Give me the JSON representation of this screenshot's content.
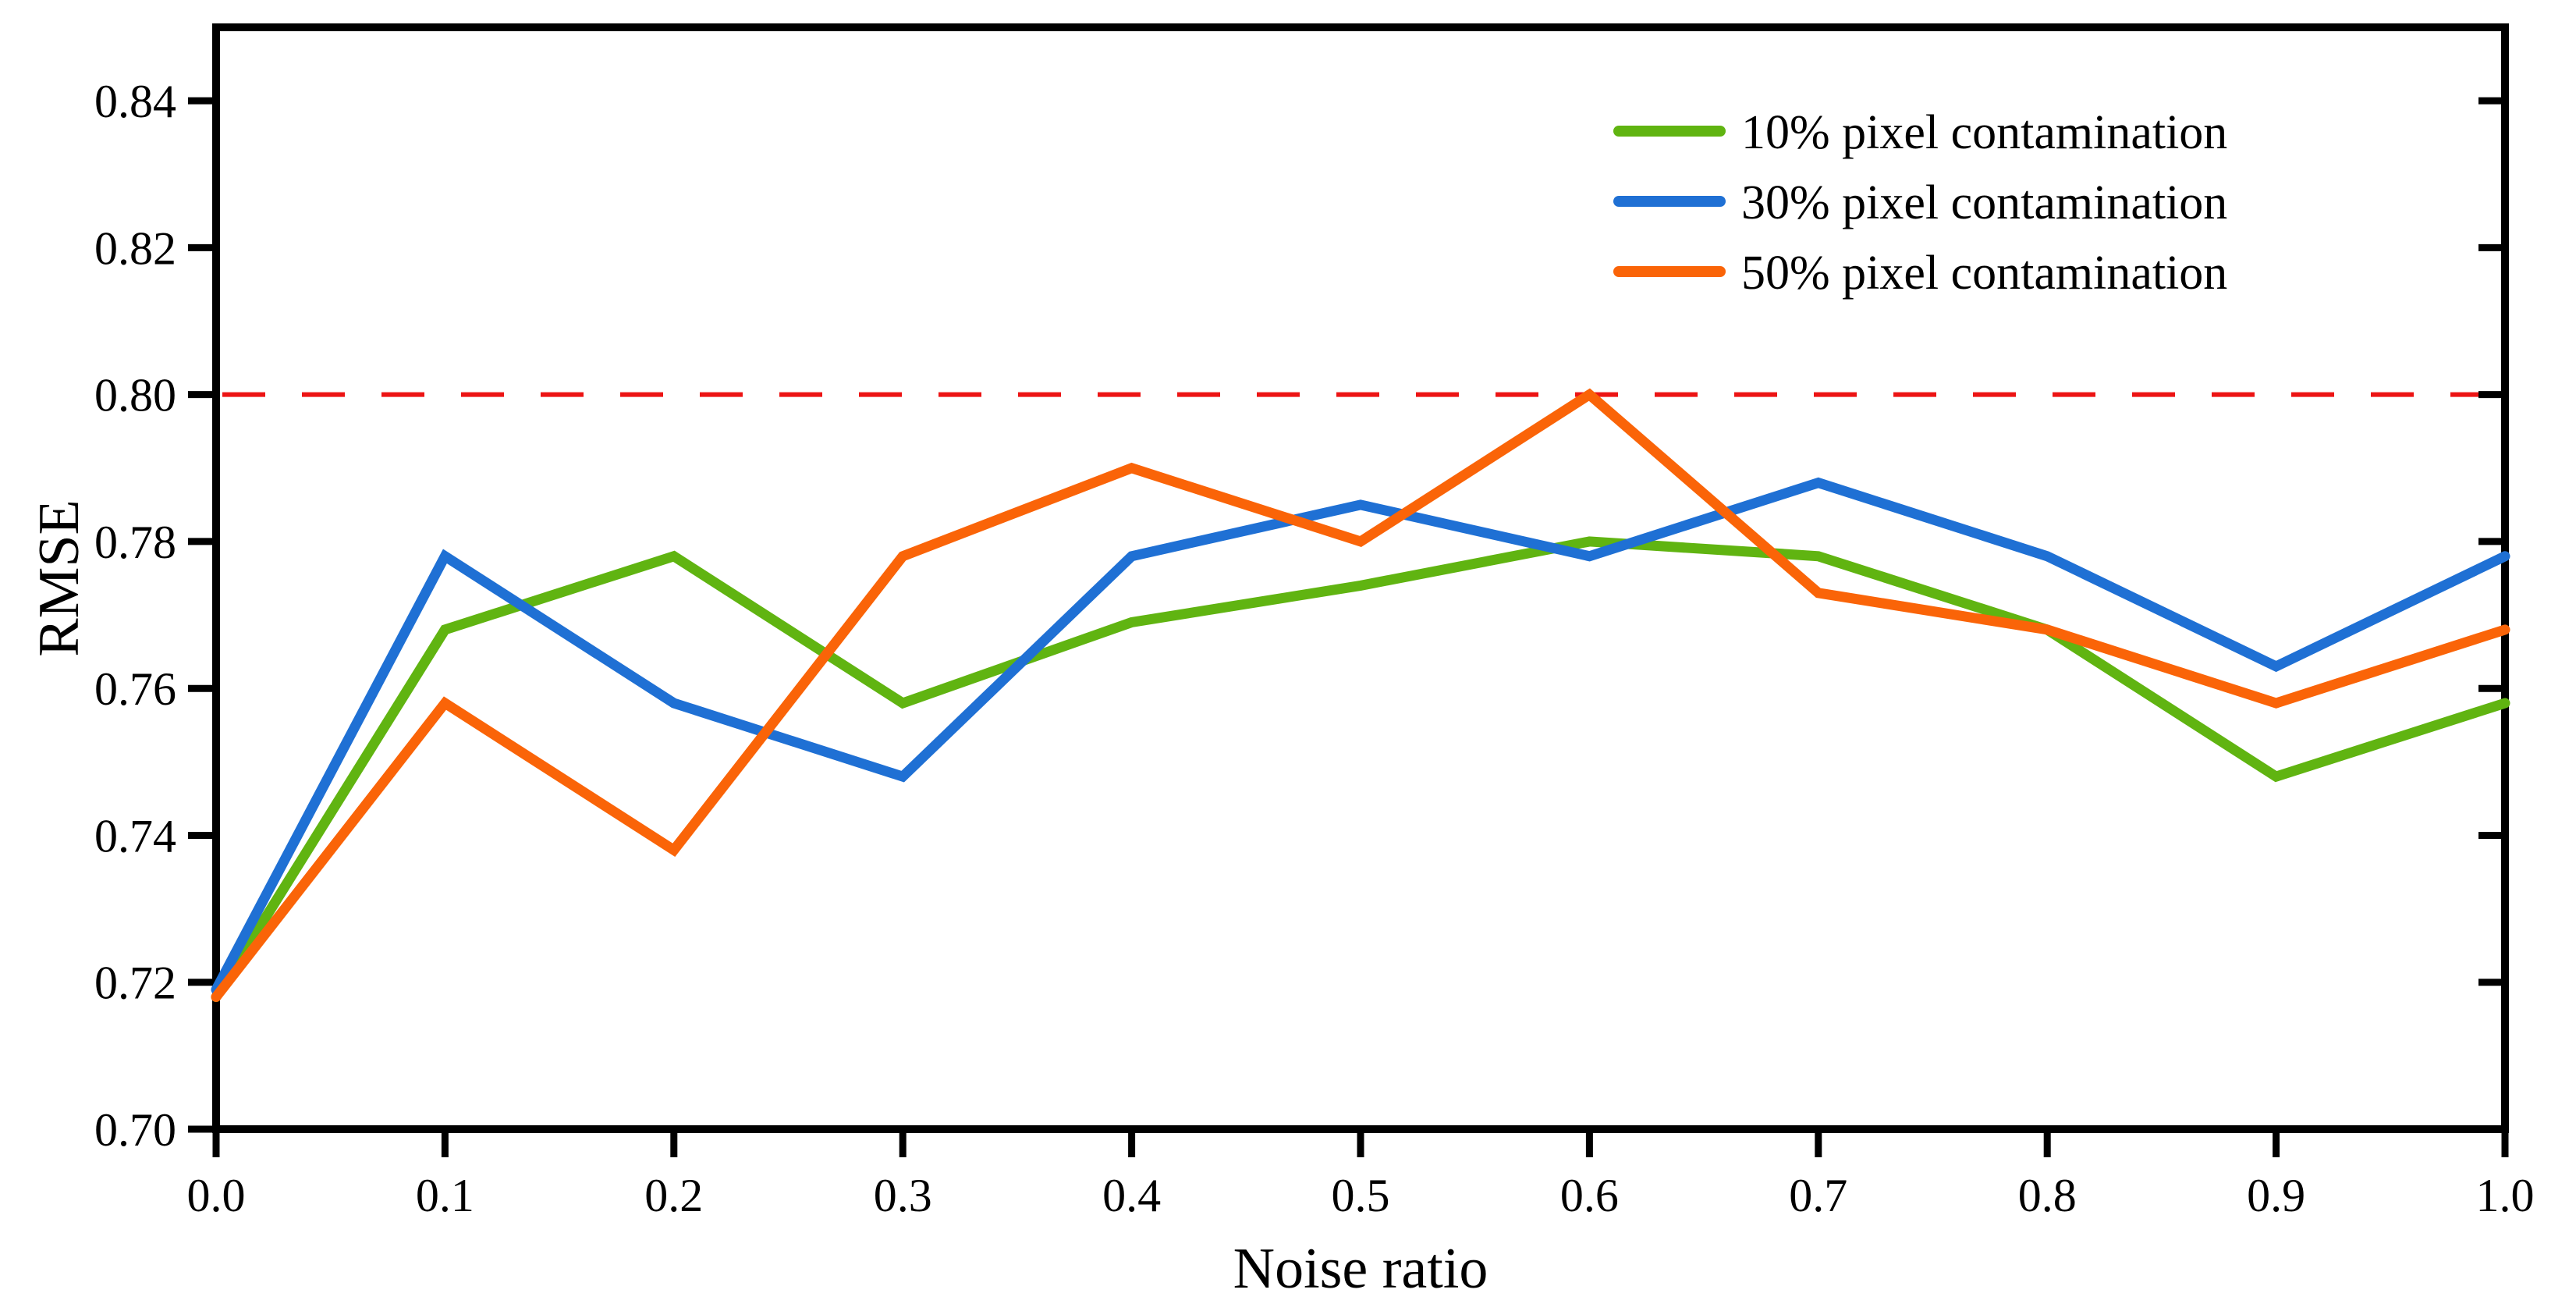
{
  "figure": {
    "background": "#ffffff",
    "text_color": "#000000"
  },
  "chart_data": {
    "type": "line",
    "title": "",
    "xlabel": "Noise ratio",
    "ylabel": "RMSE",
    "x": [
      0.0,
      0.1,
      0.2,
      0.3,
      0.4,
      0.5,
      0.6,
      0.7,
      0.8,
      0.9,
      1.0
    ],
    "xlim": [
      0.0,
      1.0
    ],
    "ylim": [
      0.7,
      0.85
    ],
    "grid": false,
    "legend_position": "top-right",
    "x_ticks": [
      {
        "value": 0.0,
        "label": "0.0"
      },
      {
        "value": 0.1,
        "label": "0.1"
      },
      {
        "value": 0.2,
        "label": "0.2"
      },
      {
        "value": 0.3,
        "label": "0.3"
      },
      {
        "value": 0.4,
        "label": "0.4"
      },
      {
        "value": 0.5,
        "label": "0.5"
      },
      {
        "value": 0.6,
        "label": "0.6"
      },
      {
        "value": 0.7,
        "label": "0.7"
      },
      {
        "value": 0.8,
        "label": "0.8"
      },
      {
        "value": 0.9,
        "label": "0.9"
      },
      {
        "value": 1.0,
        "label": "1.0"
      }
    ],
    "y_ticks": [
      {
        "value": 0.7,
        "label": "0.70"
      },
      {
        "value": 0.72,
        "label": "0.72"
      },
      {
        "value": 0.74,
        "label": "0.74"
      },
      {
        "value": 0.76,
        "label": "0.76"
      },
      {
        "value": 0.78,
        "label": "0.78"
      },
      {
        "value": 0.8,
        "label": "0.80"
      },
      {
        "value": 0.82,
        "label": "0.82"
      },
      {
        "value": 0.84,
        "label": "0.84"
      }
    ],
    "series": [
      {
        "id": "10-percent",
        "name": "10% pixel contamination",
        "color": "#60B411",
        "values": [
          0.718,
          0.768,
          0.778,
          0.758,
          0.769,
          0.774,
          0.78,
          0.778,
          0.768,
          0.748,
          0.758
        ]
      },
      {
        "id": "30-percent",
        "name": "30% pixel contamination",
        "color": "#1F70D4",
        "values": [
          0.719,
          0.778,
          0.758,
          0.748,
          0.778,
          0.785,
          0.778,
          0.788,
          0.778,
          0.763,
          0.778
        ]
      },
      {
        "id": "50-percent",
        "name": "50% pixel contamination",
        "color": "#FA6408",
        "values": [
          0.718,
          0.758,
          0.738,
          0.778,
          0.79,
          0.78,
          0.8,
          0.773,
          0.768,
          0.758,
          0.768
        ]
      }
    ],
    "reference_line": {
      "y": 0.8,
      "color": "#EC1414",
      "style": "dashed"
    }
  }
}
